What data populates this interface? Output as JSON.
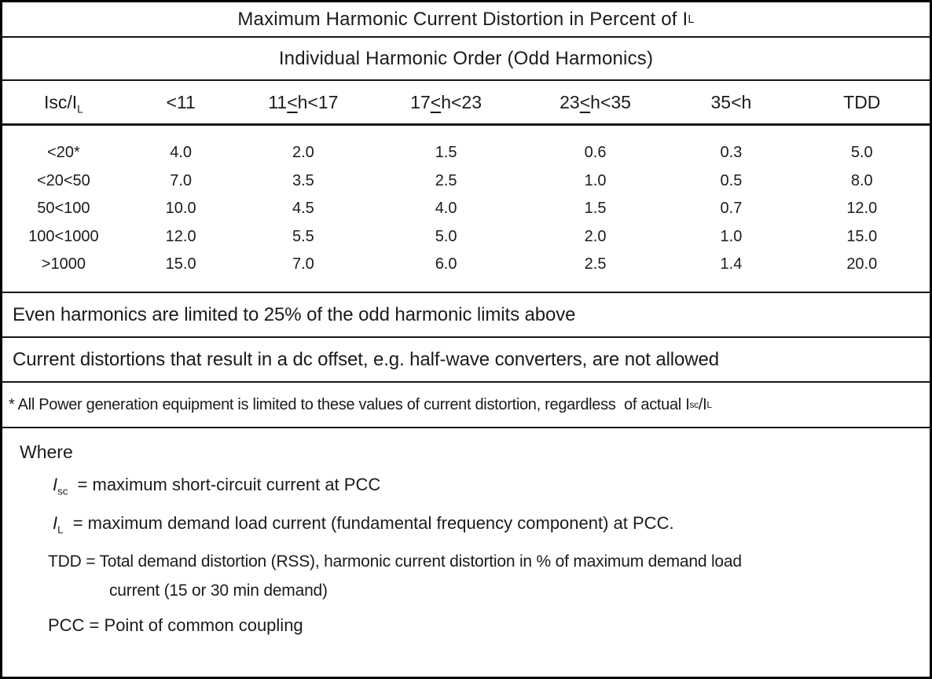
{
  "colors": {
    "text": "#1b1b1b",
    "border": "#000000",
    "background": "#ffffff"
  },
  "doc": {
    "title_segs": [
      {
        "t": "Maximum Harmonic Current Distortion in Percent of I"
      },
      {
        "t": "L",
        "s": "sub"
      }
    ],
    "subtitle": "Individual Harmonic Order (Odd Harmonics)"
  },
  "header": {
    "col0_segs": [
      {
        "t": "Isc/I"
      },
      {
        "t": "L",
        "s": "sub"
      }
    ],
    "cols": [
      "<11",
      "11≤h<17",
      "17≤h<23",
      "23≤h<35",
      "35<h",
      "TDD"
    ]
  },
  "rows": [
    {
      "label": "<20*",
      "values": [
        "4.0",
        "2.0",
        "1.5",
        "0.6",
        "0.3",
        "5.0"
      ]
    },
    {
      "label": "<20<50",
      "values": [
        "7.0",
        "3.5",
        "2.5",
        "1.0",
        "0.5",
        "8.0"
      ]
    },
    {
      "label": "50<100",
      "values": [
        "10.0",
        "4.5",
        "4.0",
        "1.5",
        "0.7",
        "12.0"
      ]
    },
    {
      "label": "100<1000",
      "values": [
        "12.0",
        "5.5",
        "5.0",
        "2.0",
        "1.0",
        "15.0"
      ]
    },
    {
      "label": ">1000",
      "values": [
        "15.0",
        "7.0",
        "6.0",
        "2.5",
        "1.4",
        "20.0"
      ]
    }
  ],
  "notes": [
    {
      "name": "note-even-harmonics",
      "small": false,
      "segs": [
        {
          "t": "Even harmonics are limited to 25% of the odd harmonic limits above"
        }
      ]
    },
    {
      "name": "note-dc-offset",
      "small": false,
      "segs": [
        {
          "t": "Current distortions that result in a dc offset, e.g. half-wave converters, are not allowed"
        }
      ]
    },
    {
      "name": "note-power-generation",
      "small": true,
      "segs": [
        {
          "t": "* All Power generation equipment is limited to these values of current distortion, regardless  of actual I"
        },
        {
          "t": "sc",
          "s": "sub"
        },
        {
          "t": "/I"
        },
        {
          "t": "L",
          "s": "sub"
        }
      ]
    }
  ],
  "where": {
    "heading": "Where",
    "lines": [
      {
        "lvl": 2,
        "small": false,
        "gap": "a",
        "segs": [
          {
            "t": "I",
            "s": "i"
          },
          {
            "t": "sc",
            "s": "sub"
          },
          {
            "t": "  = maximum short-circuit current at PCC"
          }
        ]
      },
      {
        "lvl": 2,
        "small": false,
        "gap": "b",
        "segs": [
          {
            "t": "I",
            "s": "i"
          },
          {
            "t": "L",
            "s": "sub"
          },
          {
            "t": "  = maximum demand load current (fundamental frequency component) at PCC."
          }
        ]
      },
      {
        "lvl": 1,
        "small": true,
        "gap": "c",
        "segs": [
          {
            "t": "TDD = Total demand distortion (RSS), harmonic current distortion in % of maximum demand load"
          }
        ]
      },
      {
        "lvl": 3,
        "small": true,
        "gap": "d",
        "segs": [
          {
            "t": "current (15 or 30 min demand)"
          }
        ]
      },
      {
        "lvl": 1,
        "small": false,
        "gap": "0",
        "segs": [
          {
            "t": "PCC = Point of common coupling"
          }
        ]
      }
    ]
  }
}
